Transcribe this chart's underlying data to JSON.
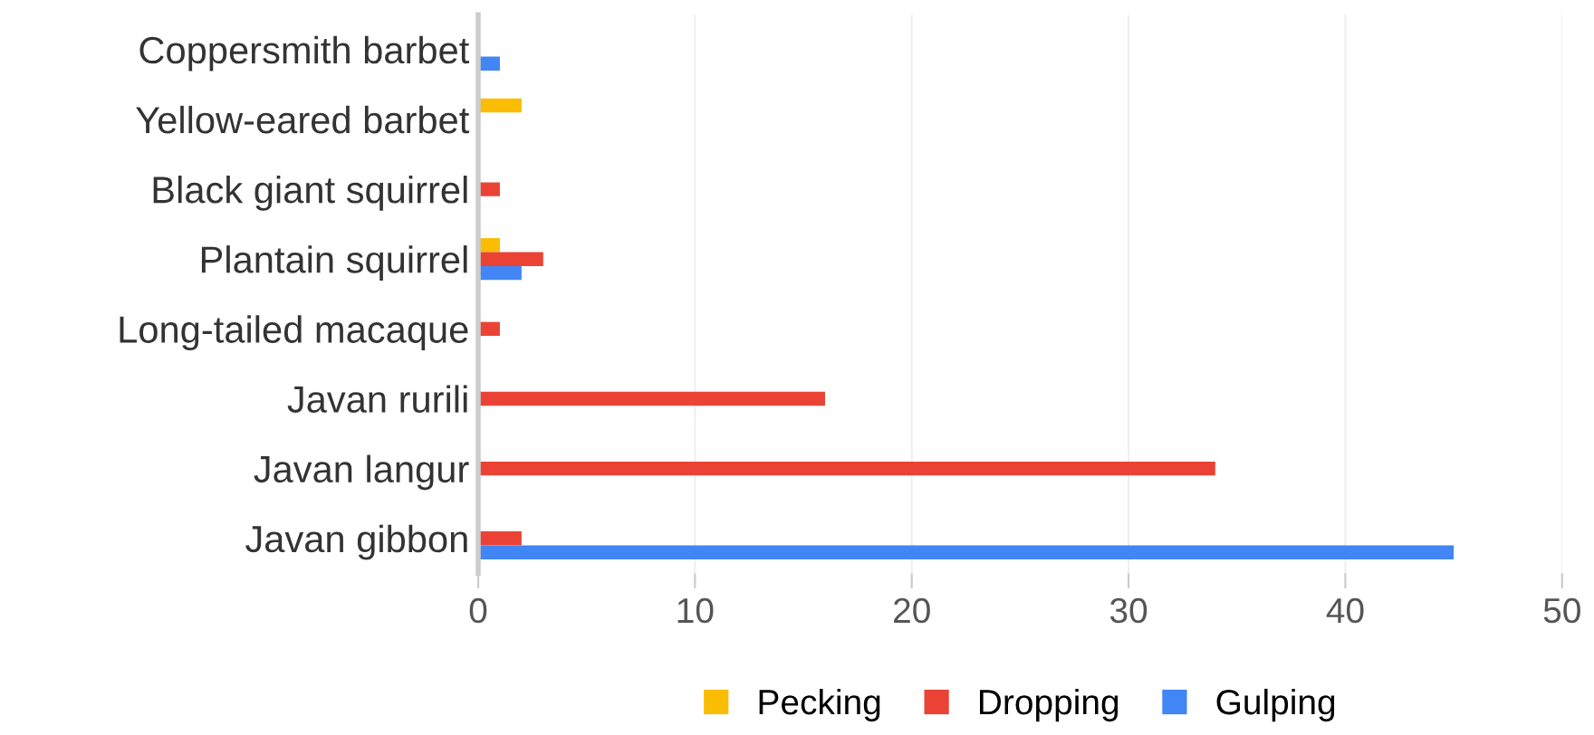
{
  "chart_data": {
    "type": "bar",
    "orientation": "horizontal",
    "categories": [
      "Coppersmith barbet",
      "Yellow-eared barbet",
      "Black giant squirrel",
      "Plantain squirrel",
      "Long-tailed macaque",
      "Javan rurili",
      "Javan langur",
      "Javan gibbon"
    ],
    "series": [
      {
        "name": "Pecking",
        "color": "#fbbc04",
        "values": [
          null,
          2,
          null,
          1,
          null,
          null,
          null,
          null
        ]
      },
      {
        "name": "Dropping",
        "color": "#ea4335",
        "values": [
          null,
          null,
          1,
          3,
          1,
          16,
          34,
          2
        ]
      },
      {
        "name": "Gulping",
        "color": "#4285f4",
        "values": [
          1,
          null,
          null,
          2,
          null,
          null,
          null,
          45
        ]
      }
    ],
    "xlim": [
      0,
      50
    ],
    "xticks": [
      0,
      10,
      20,
      30,
      40,
      50
    ],
    "grid": "x",
    "legend": "bottom"
  }
}
